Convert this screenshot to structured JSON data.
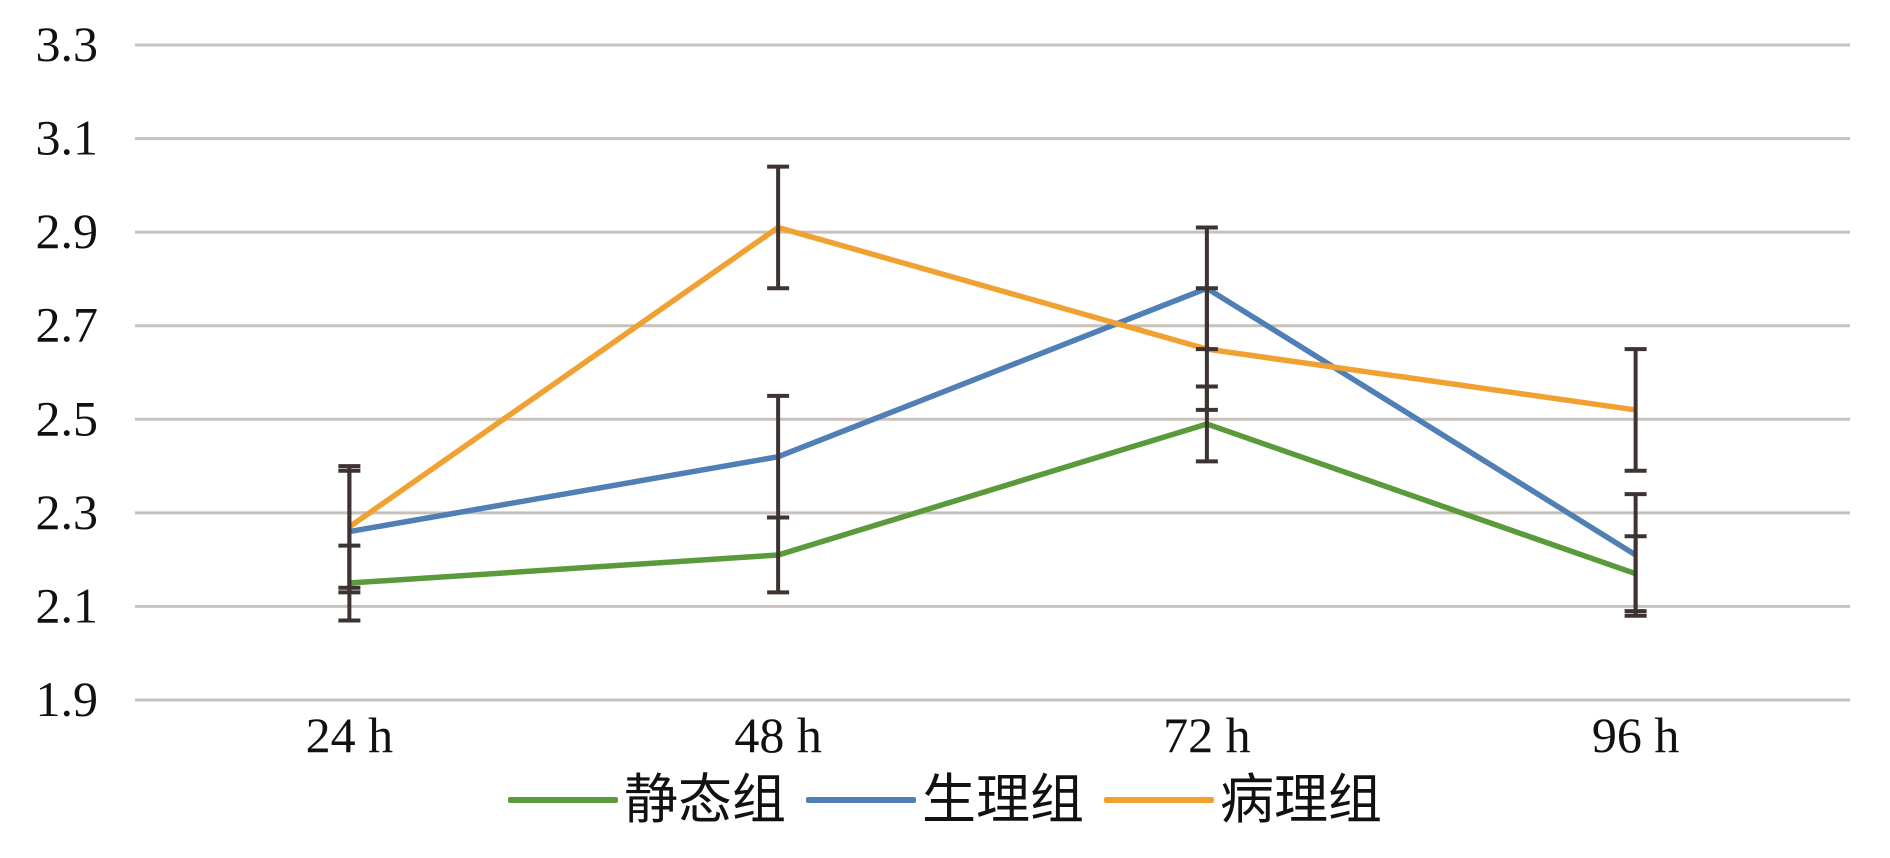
{
  "chart_data": {
    "type": "line",
    "categories": [
      "24 h",
      "48 h",
      "72 h",
      "96 h"
    ],
    "ylim": [
      1.9,
      3.3
    ],
    "yticks": [
      "1.9",
      "2.1",
      "2.3",
      "2.5",
      "2.7",
      "2.9",
      "3.1",
      "3.3"
    ],
    "grid": true,
    "legend_position": "bottom",
    "series": [
      {
        "name": "静态组",
        "color": "#5a9a3a",
        "values": [
          2.15,
          2.21,
          2.49,
          2.17
        ],
        "errors": [
          0.08,
          0.08,
          0.08,
          0.08
        ]
      },
      {
        "name": "生理组",
        "color": "#4f7fb5",
        "values": [
          2.26,
          2.42,
          2.78,
          2.21
        ],
        "errors": [
          0.13,
          0.13,
          0.13,
          0.13
        ]
      },
      {
        "name": "病理组",
        "color": "#f0a132",
        "values": [
          2.27,
          2.91,
          2.65,
          2.52
        ],
        "errors": [
          0.13,
          0.13,
          0.13,
          0.13
        ]
      }
    ],
    "error_bar_color": "#3d3330"
  }
}
